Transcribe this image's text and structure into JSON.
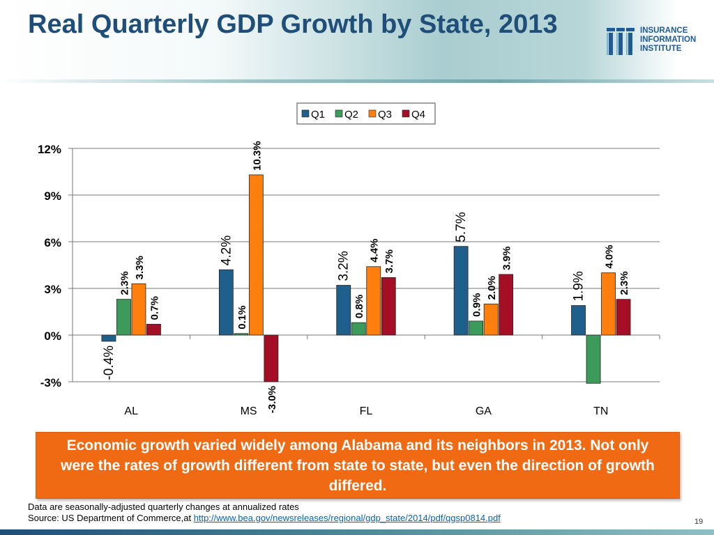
{
  "slide": {
    "title": "Real Quarterly GDP Growth by State, 2013",
    "logo_lines": [
      "INSURANCE",
      "INFORMATION",
      "INSTITUTE"
    ],
    "callout": "Economic growth varied widely among Alabama and its neighbors in 2013.  Not only were the rates of growth different from state to state, but even the direction of growth differed.",
    "footnote_line1": "Data are seasonally-adjusted quarterly changes at annualized rates",
    "footnote_source_prefix": "Source: US Department of Commerce,at ",
    "footnote_link": "http://www.bea.gov/newsreleases/regional/gdp_state/2014/pdf/qgsp0814.pdf",
    "page_number": "19"
  },
  "colors": {
    "title": "#1f4e79",
    "callout_bg": "#f06a14",
    "q1": "#1f5f8b",
    "q2": "#3c9a5a",
    "q3": "#ff7f0e",
    "q4": "#a50f25"
  },
  "chart_data": {
    "type": "bar",
    "title": "",
    "xlabel": "",
    "ylabel": "",
    "categories": [
      "AL",
      "MS",
      "FL",
      "GA",
      "TN"
    ],
    "series": [
      {
        "name": "Q1",
        "color": "#1f5f8b",
        "values": [
          -0.4,
          4.2,
          3.2,
          5.7,
          1.9
        ],
        "labels": [
          "-0.4%",
          "4.2%",
          "3.2%",
          "5.7%",
          "1.9%"
        ]
      },
      {
        "name": "Q2",
        "color": "#3c9a5a",
        "values": [
          2.3,
          0.1,
          0.8,
          0.9,
          -3.1
        ],
        "labels": [
          "2.3%",
          "0.1%",
          "0.8%",
          "0.9%",
          null
        ]
      },
      {
        "name": "Q3",
        "color": "#ff7f0e",
        "values": [
          3.3,
          10.3,
          4.4,
          2.0,
          4.0
        ],
        "labels": [
          "3.3%",
          "10.3%",
          "4.4%",
          "2.0%",
          "4.0%"
        ]
      },
      {
        "name": "Q4",
        "color": "#a50f25",
        "values": [
          0.7,
          -3.0,
          3.7,
          3.9,
          2.3
        ],
        "labels": [
          "0.7%",
          "-3.0%",
          "3.7%",
          "3.9%",
          "2.3%"
        ]
      }
    ],
    "ylim": [
      -3,
      12
    ],
    "yticks": [
      -3,
      0,
      3,
      6,
      9,
      12
    ],
    "ytick_labels": [
      "-3%",
      "0%",
      "3%",
      "6%",
      "9%",
      "12%"
    ],
    "grid": true,
    "legend_position": "top-right"
  }
}
